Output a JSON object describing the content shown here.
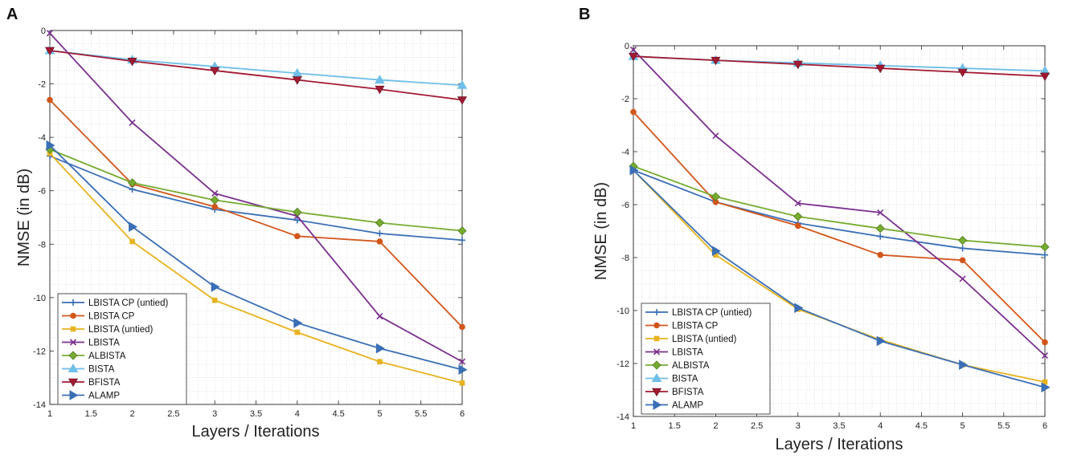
{
  "chart_data": [
    {
      "panel_label": "A",
      "type": "line",
      "xlabel": "Layers / Iterations",
      "ylabel": "NMSE (in dB)",
      "xlim": [
        1,
        6
      ],
      "ylim": [
        -14,
        0
      ],
      "xticks": [
        "1",
        "1.5",
        "2",
        "2.5",
        "3",
        "3.5",
        "4",
        "4.5",
        "5",
        "5.5",
        "6"
      ],
      "yticks": [
        "0",
        "-2",
        "-4",
        "-6",
        "-8",
        "-10",
        "-12",
        "-14"
      ],
      "grid": true,
      "legend_location": "bottom-left",
      "x": [
        1,
        2,
        3,
        4,
        5,
        6
      ],
      "series": [
        {
          "name": "LBISTA CP (untied)",
          "color": "#3a6fb5",
          "marker": "plus",
          "values": [
            -4.7,
            -5.95,
            -6.7,
            -7.1,
            -7.6,
            -7.85
          ]
        },
        {
          "name": "LBISTA CP",
          "color": "#d2561b",
          "marker": "circle",
          "values": [
            -2.6,
            -5.75,
            -6.6,
            -7.7,
            -7.9,
            -11.1
          ]
        },
        {
          "name": "LBISTA (untied)",
          "color": "#e8b320",
          "marker": "square",
          "values": [
            -4.6,
            -7.9,
            -10.1,
            -11.3,
            -12.4,
            -13.2
          ]
        },
        {
          "name": "LBISTA",
          "color": "#7b2f8e",
          "marker": "x",
          "values": [
            -0.1,
            -3.45,
            -6.1,
            -6.95,
            -10.7,
            -12.4
          ]
        },
        {
          "name": "ALBISTA",
          "color": "#77ac30",
          "marker": "diamond",
          "values": [
            -4.45,
            -5.7,
            -6.35,
            -6.8,
            -7.2,
            -7.5
          ]
        },
        {
          "name": "BISTA",
          "color": "#6fbfe8",
          "marker": "triangle-up",
          "values": [
            -0.75,
            -1.1,
            -1.35,
            -1.6,
            -1.85,
            -2.05
          ]
        },
        {
          "name": "BFISTA",
          "color": "#a21a32",
          "marker": "triangle-down",
          "values": [
            -0.75,
            -1.15,
            -1.5,
            -1.85,
            -2.2,
            -2.6
          ]
        },
        {
          "name": "ALAMP",
          "color": "#3a6fb5",
          "marker": "triangle-right",
          "values": [
            -4.3,
            -7.35,
            -9.6,
            -10.95,
            -11.9,
            -12.7
          ]
        }
      ]
    },
    {
      "panel_label": "B",
      "type": "line",
      "xlabel": "Layers / Iterations",
      "ylabel": "NMSE (in dB)",
      "xlim": [
        1,
        6
      ],
      "ylim": [
        -14,
        0
      ],
      "xticks": [
        "1",
        "1.5",
        "2",
        "2.5",
        "3",
        "3.5",
        "4",
        "4.5",
        "5",
        "5.5",
        "6"
      ],
      "yticks": [
        "0",
        "-2",
        "-4",
        "-6",
        "-8",
        "-10",
        "-12",
        "-14"
      ],
      "grid": true,
      "legend_location": "bottom-left",
      "x": [
        1,
        2,
        3,
        4,
        5,
        6
      ],
      "series": [
        {
          "name": "LBISTA CP (untied)",
          "color": "#3a6fb5",
          "marker": "plus",
          "values": [
            -4.7,
            -5.9,
            -6.7,
            -7.2,
            -7.65,
            -7.9
          ]
        },
        {
          "name": "LBISTA CP",
          "color": "#d2561b",
          "marker": "circle",
          "values": [
            -2.5,
            -5.9,
            -6.8,
            -7.9,
            -8.1,
            -11.2
          ]
        },
        {
          "name": "LBISTA (untied)",
          "color": "#e8b320",
          "marker": "square",
          "values": [
            -4.7,
            -7.9,
            -9.95,
            -11.1,
            -12.05,
            -12.7
          ]
        },
        {
          "name": "LBISTA",
          "color": "#7b2f8e",
          "marker": "x",
          "values": [
            -0.15,
            -3.4,
            -5.95,
            -6.3,
            -8.8,
            -11.7
          ]
        },
        {
          "name": "ALBISTA",
          "color": "#77ac30",
          "marker": "diamond",
          "values": [
            -4.55,
            -5.7,
            -6.45,
            -6.9,
            -7.35,
            -7.6
          ]
        },
        {
          "name": "BISTA",
          "color": "#6fbfe8",
          "marker": "triangle-up",
          "values": [
            -0.4,
            -0.55,
            -0.65,
            -0.75,
            -0.85,
            -0.95
          ]
        },
        {
          "name": "BFISTA",
          "color": "#a21a32",
          "marker": "triangle-down",
          "values": [
            -0.4,
            -0.55,
            -0.7,
            -0.85,
            -1.0,
            -1.15
          ]
        },
        {
          "name": "ALAMP",
          "color": "#3a6fb5",
          "marker": "triangle-right",
          "values": [
            -4.7,
            -7.75,
            -9.9,
            -11.15,
            -12.05,
            -12.9
          ]
        }
      ]
    }
  ]
}
